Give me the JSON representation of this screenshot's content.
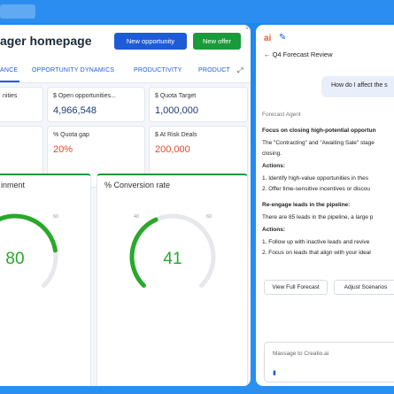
{
  "header": {
    "title": "ager homepage",
    "new_opportunity_label": "New opportunity",
    "new_offer_label": "New offer",
    "close_glyph": "×"
  },
  "tabs": [
    {
      "label": "ANCE",
      "active": true
    },
    {
      "label": "OPPORTUNITY DYNAMICS",
      "active": false
    },
    {
      "label": "PRODUCTIVITY",
      "active": false
    },
    {
      "label": "PRODUCT",
      "active": false
    }
  ],
  "tabs_expand_glyph": "⤢",
  "kpis": [
    {
      "label": "nities",
      "value": ""
    },
    {
      "label": "$ Open opportunities...",
      "value": "4,966,548"
    },
    {
      "label": "$ Quota Target",
      "value": "1,000,000"
    },
    {
      "label": "",
      "value": ""
    },
    {
      "label": "% Quota gap",
      "value": "20%"
    },
    {
      "label": "$ At Risk Deals",
      "value": "200,000"
    }
  ],
  "gauges": [
    {
      "title": "inment",
      "value": "80",
      "value_num": 80,
      "min": 0,
      "max": 100,
      "tick_mid": "60",
      "tick_max": "100",
      "tick_low": "",
      "color": "#2aa82a"
    },
    {
      "title": "% Conversion rate",
      "value": "41",
      "value_num": 41,
      "min": 0,
      "max": 100,
      "tick_low_mid": "40",
      "tick_mid": "60",
      "tick_min": "0",
      "tick_max": "100",
      "color": "#2aa82a"
    }
  ],
  "chat": {
    "logo": "ai",
    "edit_icon": "edit-icon",
    "back_label": "← Q4 Forecast Review",
    "user_message": "How do I affect the s",
    "agent_label": "Forecast Agent",
    "lines": [
      {
        "text": "Focus on closing high-potential opportun",
        "bold": true
      },
      {
        "text": "The \"Contracting\" and \"Awaiting Sale\" stage",
        "bold": false
      },
      {
        "text": "closing.",
        "bold": false
      },
      {
        "text": "Actions:",
        "bold": true
      },
      {
        "text": "1. Identify high-value opportunities in thes",
        "bold": false
      },
      {
        "text": "2. Offer time-sensitive incentives or discou",
        "bold": false
      },
      {
        "text": "Re-engage leads in the pipeline:",
        "bold": true
      },
      {
        "text": "There are 85 leads in the pipeline, a large p",
        "bold": false
      },
      {
        "text": "Actions:",
        "bold": true
      },
      {
        "text": "1. Follow up with inactive leads and revive",
        "bold": false
      },
      {
        "text": "2. Focus on leads that align with your ideal",
        "bold": false
      }
    ],
    "view_forecast_label": "View Full Forecast",
    "adjust_scenarios_label": "Adjust Scenarios",
    "message_placeholder": "Massage to Creatio.ai",
    "mic_glyph": "🎙"
  }
}
